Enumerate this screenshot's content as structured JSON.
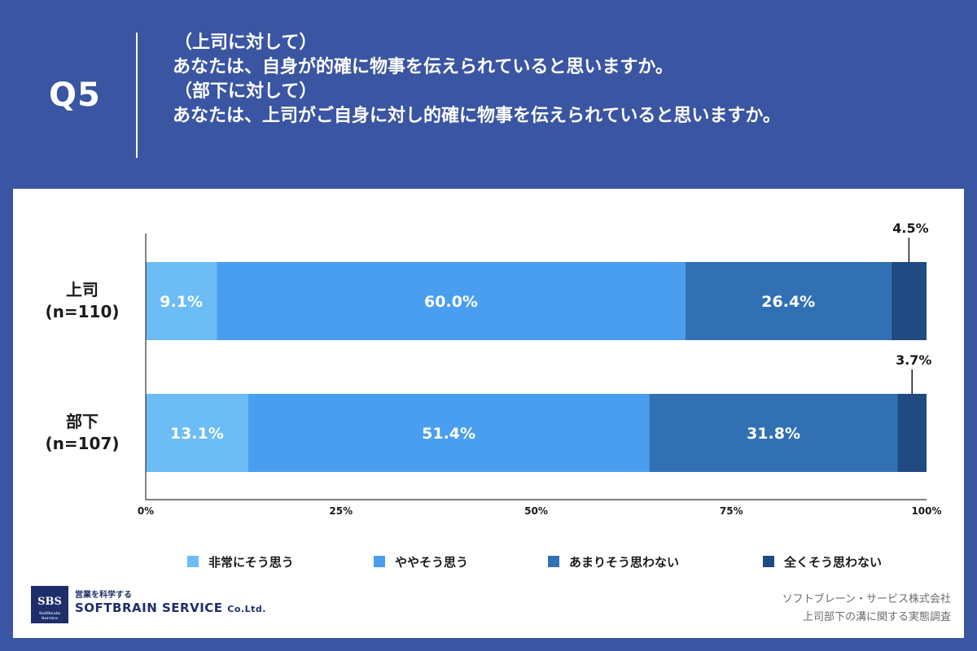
{
  "header": {
    "q_label": "Q5",
    "lines": [
      "（上司に対して）",
      "あなたは、自身が的確に物事を伝えられていると思いますか。",
      "（部下に対して）",
      "あなたは、上司がご自身に対し的確に物事を伝えられていると思いますか。"
    ]
  },
  "chart_data": {
    "type": "bar",
    "orientation": "horizontal",
    "stacked": true,
    "categories": [
      "上司\n(n=110)",
      "部下\n(n=107)"
    ],
    "category_lines": [
      [
        "上司",
        "(n=110)"
      ],
      [
        "部下",
        "(n=107)"
      ]
    ],
    "series": [
      {
        "name": "非常にそう思う",
        "values": [
          9.1,
          13.1
        ],
        "labels": [
          "9.1%",
          "13.1%"
        ],
        "color": "#6cbcf5",
        "label_color": "#ffffff",
        "label_position": "inside"
      },
      {
        "name": "ややそう思う",
        "values": [
          60.0,
          51.4
        ],
        "labels": [
          "60.0%",
          "51.4%"
        ],
        "color": "#4a9eef",
        "label_color": "#ffffff",
        "label_position": "inside"
      },
      {
        "name": "あまりそう思わない",
        "values": [
          26.4,
          31.8
        ],
        "labels": [
          "26.4%",
          "31.8%"
        ],
        "color": "#3270b4",
        "label_color": "#ffffff",
        "label_position": "inside"
      },
      {
        "name": "全くそう思わない",
        "values": [
          4.5,
          3.7
        ],
        "labels": [
          "4.5%",
          "3.7%"
        ],
        "color": "#1f4a82",
        "label_color": "#1a1a1a",
        "label_position": "above"
      }
    ],
    "x_ticks": [
      "0%",
      "25%",
      "50%",
      "75%",
      "100%"
    ],
    "xlim": [
      0,
      100
    ],
    "grid": false,
    "legend_position": "bottom"
  },
  "footer": {
    "logo_badge": "SBS",
    "logo_badge_sub": "Softbrain Service",
    "logo_tagline": "営業を科学する",
    "logo_name": "SOFTBRAIN SERVICE",
    "logo_suffix": "Co.Ltd.",
    "source_lines": [
      "ソフトブレーン・サービス株式会社",
      "上司部下の溝に関する実態調査"
    ]
  }
}
